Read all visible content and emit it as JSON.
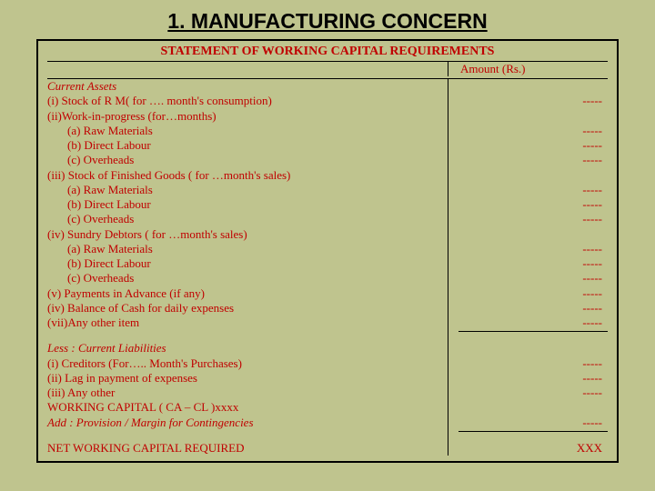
{
  "colors": {
    "background": "#bfc48e",
    "text_red": "#c00000",
    "border": "#000000"
  },
  "title": "1. MANUFACTURING CONCERN",
  "subtitle": "STATEMENT OF WORKING CAPITAL REQUIREMENTS",
  "amount_header": "Amount (Rs.)",
  "dash": "-----",
  "xxx": "XXX",
  "lines": {
    "ca": "Current Assets",
    "i": "(i) Stock of R M( for …. month's consumption)",
    "ii": "(ii)Work-in-progress (for…months)",
    "ii_a": "(a) Raw Materials",
    "ii_b": "(b) Direct Labour",
    "ii_c": "(c) Overheads",
    "iii": "(iii) Stock of Finished Goods ( for …month's sales)",
    "iii_a": "(a) Raw Materials",
    "iii_b": "(b) Direct Labour",
    "iii_c": "(c) Overheads",
    "iv": "(iv) Sundry Debtors ( for …month's sales)",
    "iv_a": "(a) Raw Materials",
    "iv_b": "(b) Direct Labour",
    "iv_c": "(c) Overheads",
    "v": "(v) Payments in Advance (if any)",
    "vi": "(iv) Balance of Cash for daily expenses",
    "vii": "(vii)Any other item",
    "less": "Less : Current Liabilities",
    "l_i": "(i) Creditors (For….. Month's Purchases)",
    "l_ii": "(ii) Lag in payment of expenses",
    "l_iii": "(iii) Any other",
    "wc": "WORKING CAPITAL ( CA – CL )xxxx",
    "add": "Add : Provision  / Margin for Contingencies",
    "net": "NET WORKING CAPITAL REQUIRED"
  }
}
